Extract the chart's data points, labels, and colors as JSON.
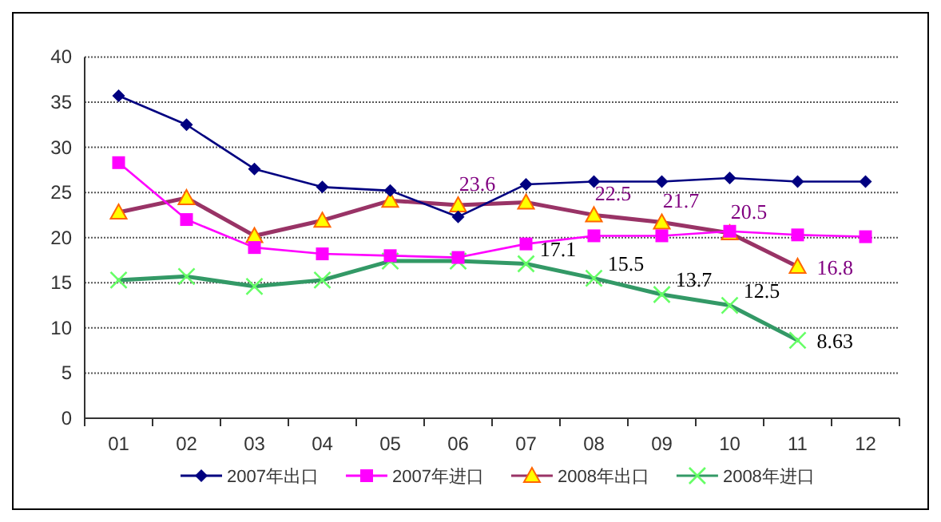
{
  "chart_data": {
    "type": "line",
    "categories": [
      "01",
      "02",
      "03",
      "04",
      "05",
      "06",
      "07",
      "08",
      "09",
      "10",
      "11",
      "12"
    ],
    "ylim": [
      0,
      40
    ],
    "yticks": [
      0,
      5,
      10,
      15,
      20,
      25,
      30,
      35,
      40
    ],
    "grid": "y",
    "legend": "bottom",
    "series": [
      {
        "name": "2007年出口",
        "color": "#000080",
        "marker": "diamond",
        "values": [
          35.7,
          32.5,
          27.6,
          25.6,
          25.2,
          22.3,
          25.9,
          26.2,
          26.2,
          26.6,
          26.2,
          26.2
        ]
      },
      {
        "name": "2007年进口",
        "color": "#ff00ff",
        "marker": "square",
        "values": [
          28.3,
          22.0,
          18.9,
          18.2,
          18.0,
          17.8,
          19.3,
          20.2,
          20.2,
          20.7,
          20.3,
          20.1
        ]
      },
      {
        "name": "2008年出口",
        "color": "#993366",
        "marker": "triangle",
        "values": [
          22.8,
          24.4,
          20.2,
          21.9,
          24.1,
          23.6,
          23.9,
          22.5,
          21.7,
          20.5,
          16.8,
          null
        ],
        "value_labels": [
          null,
          null,
          null,
          null,
          null,
          "23.6",
          null,
          "22.5",
          "21.7",
          "20.5",
          "16.8",
          null
        ]
      },
      {
        "name": "2008年进口",
        "color": "#339966",
        "marker": "cross",
        "values": [
          15.3,
          15.7,
          14.6,
          15.3,
          17.4,
          17.4,
          17.1,
          15.5,
          13.7,
          12.5,
          8.63,
          null
        ],
        "value_labels": [
          null,
          null,
          null,
          null,
          null,
          null,
          "17.1",
          "15.5",
          "13.7",
          "12.5",
          "8.63",
          null
        ]
      }
    ]
  }
}
